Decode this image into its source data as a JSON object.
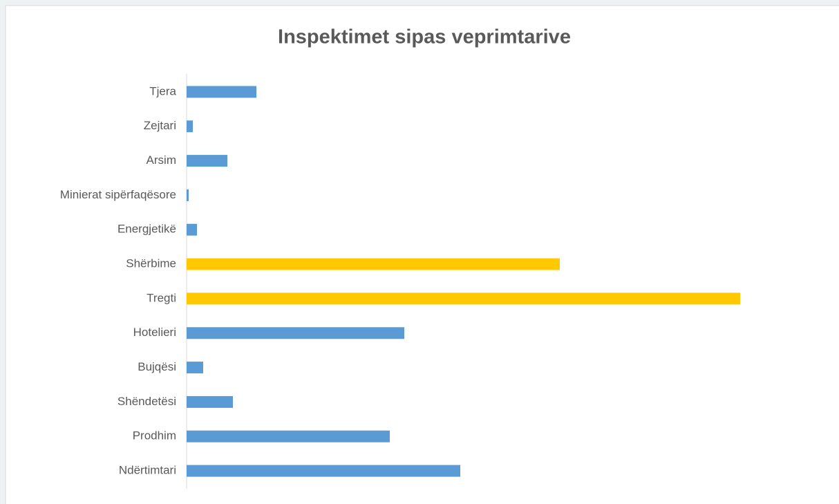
{
  "chart_data": {
    "type": "hbar",
    "title": "Inspektimet sipas veprimtarive",
    "categories": [
      "Tjera",
      "Zejtari",
      "Arsim",
      "Minierat sipërfaqësore",
      "Energjetikë",
      "Shërbime",
      "Tregti",
      "Hotelieri",
      "Bujqësi",
      "Shëndetësi",
      "Prodhim",
      "Ndërtimtari"
    ],
    "values": [
      101,
      9,
      59,
      3,
      15,
      540,
      801,
      315,
      24,
      67,
      294,
      396
    ],
    "colors": [
      "#5b9bd5",
      "#5b9bd5",
      "#5b9bd5",
      "#5b9bd5",
      "#5b9bd5",
      "#ffc800",
      "#ffc800",
      "#5b9bd5",
      "#5b9bd5",
      "#5b9bd5",
      "#5b9bd5",
      "#5b9bd5"
    ],
    "xlim": [
      0,
      801
    ]
  }
}
